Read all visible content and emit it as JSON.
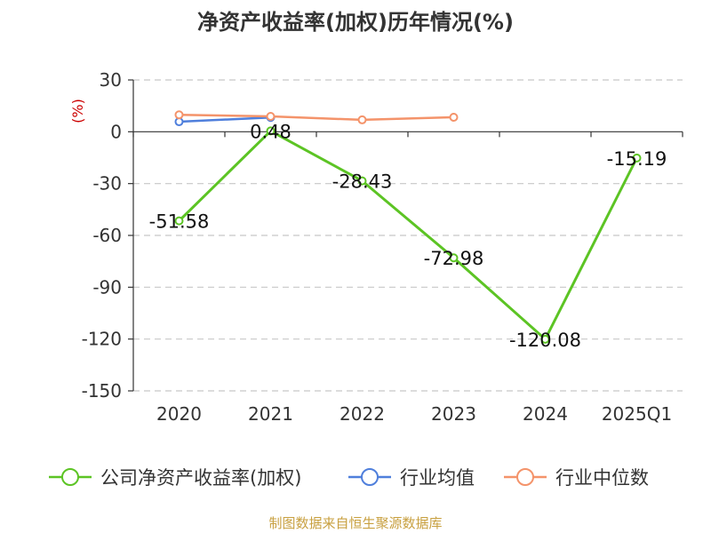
{
  "chart_data": {
    "type": "line",
    "title": "净资产收益率(加权)历年情况(%)",
    "unit_label": "(%)",
    "categories": [
      "2020",
      "2021",
      "2022",
      "2023",
      "2024",
      "2025Q1"
    ],
    "ylim": [
      -150,
      30
    ],
    "yticks": [
      30,
      0,
      -30,
      -60,
      -90,
      -120,
      -150
    ],
    "ytick_labels": [
      "30",
      "0",
      "-30",
      "-60",
      "-90",
      "-120",
      "-150"
    ],
    "grid": true,
    "legend_position": "bottom",
    "series": [
      {
        "name": "公司净资产收益率(加权)",
        "color": "#5cc424",
        "values": [
          -51.58,
          0.48,
          -28.43,
          -72.98,
          -120.08,
          -15.19
        ],
        "labels": [
          "-51.58",
          "0.48",
          "-28.43",
          "-72.98",
          "-120.08",
          "-15.19"
        ]
      },
      {
        "name": "行业均值",
        "color": "#4f7fdc",
        "values": [
          5.8,
          8.3,
          null,
          null,
          null,
          null
        ],
        "labels": []
      },
      {
        "name": "行业中位数",
        "color": "#f4936a",
        "values": [
          9.8,
          8.9,
          6.9,
          8.4,
          null,
          null
        ],
        "labels": []
      }
    ]
  },
  "unit_color": "#cc0000",
  "source": {
    "text": "制图数据来自恒生聚源数据库",
    "color": "#c8a040"
  }
}
